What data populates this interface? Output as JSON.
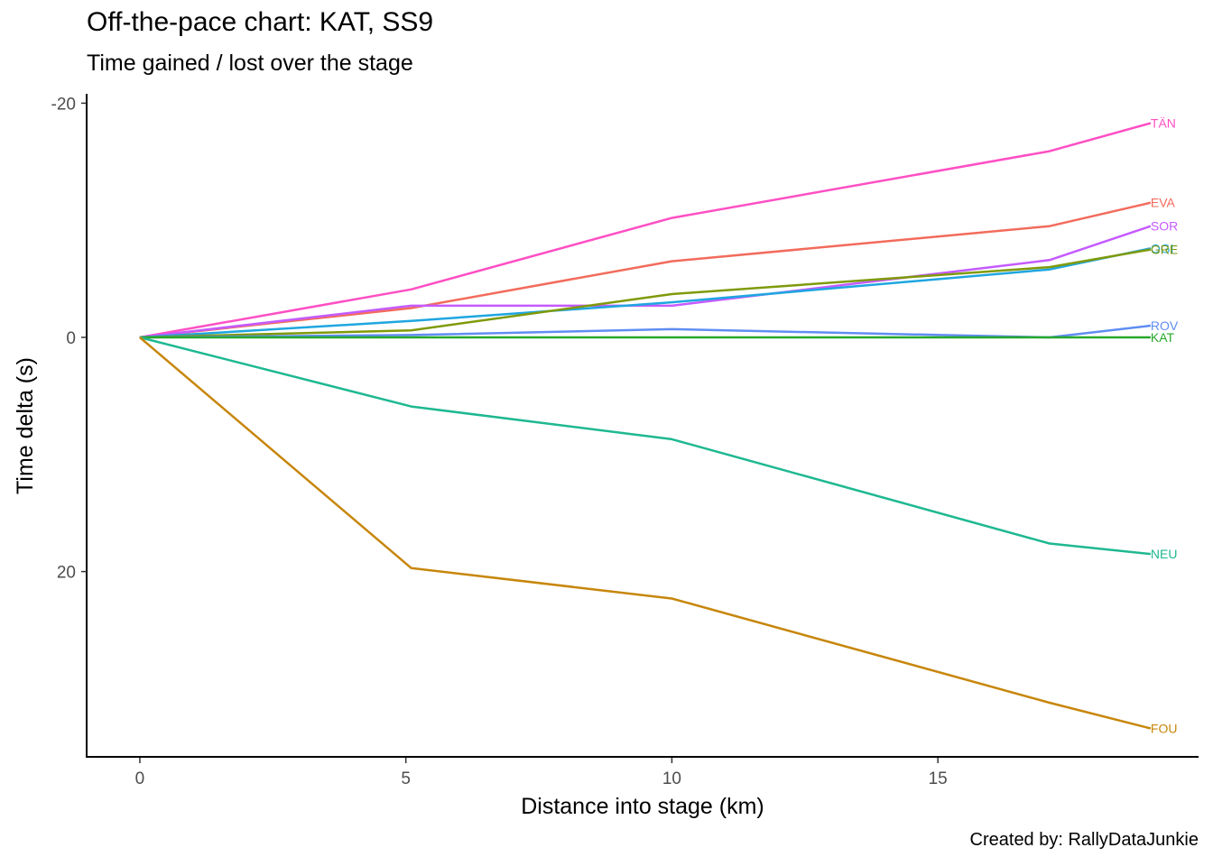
{
  "chart_data": {
    "type": "line",
    "title": "Off-the-pace chart: KAT, SS9",
    "subtitle": "Time gained / lost over the stage",
    "caption": "Created by: RallyDataJunkie",
    "xlabel": "Distance into stage (km)",
    "ylabel": "Time delta (s)",
    "xlim": [
      -1,
      19.9
    ],
    "ylim": [
      -20.8,
      35.9
    ],
    "y_reversed": true,
    "x_ticks": [
      0,
      5,
      10,
      15
    ],
    "y_ticks": [
      -20,
      0,
      20
    ],
    "y_tick_labels": [
      "-20",
      "0",
      "20"
    ],
    "grid": false,
    "legend": "direct labels at line ends",
    "x": [
      0,
      5.1,
      10,
      17.1,
      19
    ],
    "series": [
      {
        "name": "TÄN",
        "color": "#FF4FC4",
        "values": [
          0,
          -4.1,
          -10.2,
          -15.9,
          -18.3
        ]
      },
      {
        "name": "EVA",
        "color": "#F26B5C",
        "values": [
          0,
          -2.5,
          -6.5,
          -9.5,
          -11.5
        ]
      },
      {
        "name": "SOR",
        "color": "#C55BFF",
        "values": [
          0,
          -2.7,
          -2.7,
          -6.6,
          -9.5
        ]
      },
      {
        "name": "OGI",
        "color": "#1FA6E0",
        "values": [
          0,
          -1.4,
          -3.0,
          -5.8,
          -7.6
        ]
      },
      {
        "name": "GRE",
        "color": "#7F9A0A",
        "values": [
          0,
          -0.6,
          -3.7,
          -6.0,
          -7.5
        ]
      },
      {
        "name": "ROV",
        "color": "#5F8DF2",
        "values": [
          0,
          -0.2,
          -0.7,
          0.0,
          -1.0
        ]
      },
      {
        "name": "KAT",
        "color": "#26A82B",
        "values": [
          0,
          0,
          0,
          0,
          0
        ]
      },
      {
        "name": "NEU",
        "color": "#1EB891",
        "values": [
          0,
          5.9,
          8.7,
          17.6,
          18.5
        ]
      },
      {
        "name": "FOU",
        "color": "#C7860A",
        "values": [
          0,
          19.7,
          22.3,
          31.2,
          33.4
        ]
      }
    ]
  }
}
